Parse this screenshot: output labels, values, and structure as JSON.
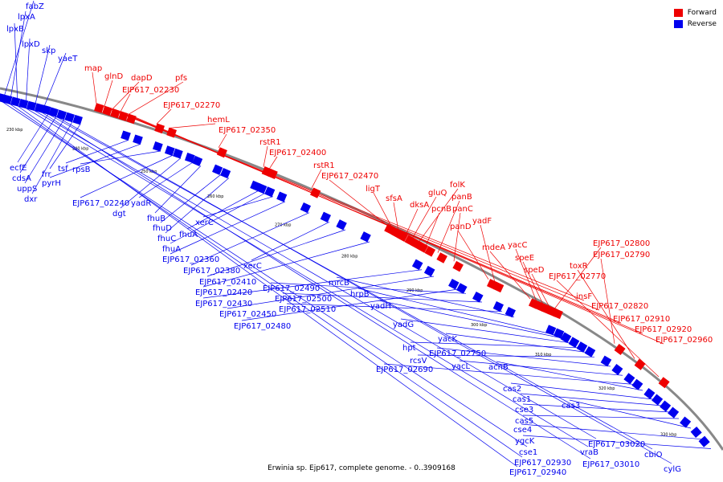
{
  "caption": "Erwinia sp. Ejp617, complete genome. - 0..3909168",
  "legend": [
    {
      "label": "Forward",
      "color": "#ee0000"
    },
    {
      "label": "Reverse",
      "color": "#0000ee"
    }
  ],
  "colors": {
    "forward": "#ee0000",
    "reverse": "#0000ee",
    "backbone": "#888888"
  },
  "scale_ticks": [
    "230 kbp",
    "240 kbp",
    "250 kbp",
    "260 kbp",
    "270 kbp",
    "280 kbp",
    "290 kbp",
    "300 kbp",
    "310 kbp",
    "320 kbp",
    "330 kbp"
  ],
  "forward_labels": [
    "map",
    "glnD",
    "dapD",
    "EJP617_02230",
    "pfs",
    "EJP617_02270",
    "hemL",
    "EJP617_02350",
    "rstR1",
    "EJP617_02400",
    "rstR1",
    "EJP617_02470",
    "ligT",
    "sfsA",
    "dksA",
    "gluQ",
    "folK",
    "pcnB",
    "panB",
    "panC",
    "panD",
    "yadF",
    "mdeA",
    "yacC",
    "speE",
    "speD",
    "EJP617_02800",
    "EJP617_02790",
    "toxR",
    "EJP617_02770",
    "insF",
    "EJP617_02820",
    "EJP617_02910",
    "EJP617_02920",
    "EJP617_02960"
  ],
  "reverse_labels": [
    "fabZ",
    "lpxA",
    "lpxB",
    "lpxD",
    "skp",
    "yaeT",
    "ecfE",
    "cdsA",
    "uppS",
    "dxr",
    "frr",
    "tsf",
    "pyrH",
    "rpsB",
    "EJP617_02240",
    "dgt",
    "yadR",
    "fhuB",
    "fhuD",
    "fhuC",
    "fhuA",
    "fhuA",
    "xerC",
    "EJP617_02360",
    "EJP617_02380",
    "xerC",
    "EJP617_02410",
    "EJP617_02420",
    "EJP617_02430",
    "EJP617_02450",
    "EJP617_02480",
    "EJP617_02490",
    "EJP617_02500",
    "EJP617_02510",
    "mrcB",
    "hrpB",
    "yadH",
    "yadG",
    "hpt",
    "yacK",
    "rcsV",
    "EJP617_02750",
    "yacL",
    "EJP617_02690",
    "acnB",
    "cas2",
    "cas1",
    "cse3",
    "cas5",
    "cas3",
    "cse4",
    "ygcK",
    "cse1",
    "EJP617_02930",
    "EJP617_02940",
    "vraB",
    "EJP617_03020",
    "EJP617_03010",
    "cbiO",
    "cylG"
  ]
}
